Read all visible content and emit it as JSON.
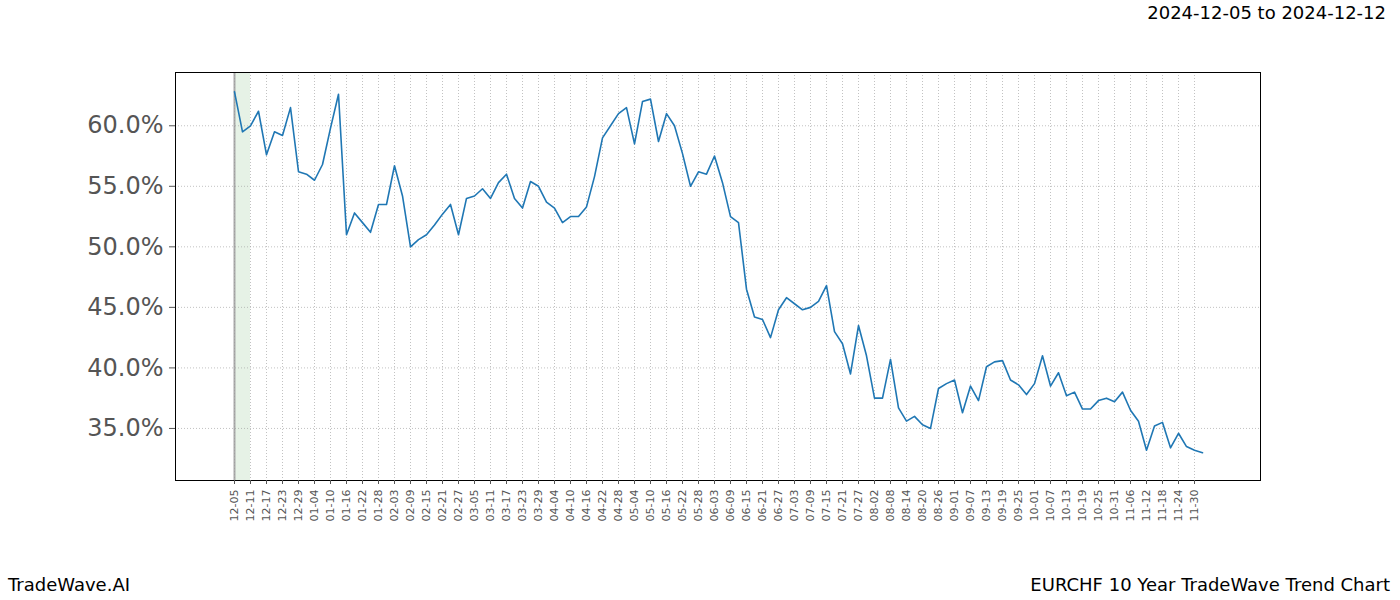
{
  "chart_data": {
    "type": "line",
    "title": "2024-12-05 to 2024-12-12",
    "caption_left": "TradeWave.AI",
    "caption_right": "EURCHF 10 Year TradeWave Trend Chart",
    "categories": [
      "12-05",
      null,
      "12-11",
      null,
      "12-17",
      null,
      "12-23",
      null,
      "12-29",
      null,
      "01-04",
      null,
      "01-10",
      null,
      "01-16",
      null,
      "01-22",
      null,
      "01-28",
      null,
      "02-03",
      null,
      "02-09",
      null,
      "02-15",
      null,
      "02-21",
      null,
      "02-27",
      null,
      "03-05",
      null,
      "03-11",
      null,
      "03-17",
      null,
      "03-23",
      null,
      "03-29",
      null,
      "04-04",
      null,
      "04-10",
      null,
      "04-16",
      null,
      "04-22",
      null,
      "04-28",
      null,
      "05-04",
      null,
      "05-10",
      null,
      "05-16",
      null,
      "05-22",
      null,
      "05-28",
      null,
      "06-03",
      null,
      "06-09",
      null,
      "06-15",
      null,
      "06-21",
      null,
      "06-27",
      null,
      "07-03",
      null,
      "07-09",
      null,
      "07-15",
      null,
      "07-21",
      null,
      "07-27",
      null,
      "08-02",
      null,
      "08-08",
      null,
      "08-14",
      null,
      "08-20",
      null,
      "08-26",
      null,
      "09-01",
      null,
      "09-07",
      null,
      "09-13",
      null,
      "09-19",
      null,
      "09-25",
      null,
      "10-01",
      null,
      "10-07",
      null,
      "10-13",
      null,
      "10-19",
      null,
      "10-25",
      null,
      "10-31",
      null,
      "11-06",
      null,
      "11-12",
      null,
      "11-18",
      null,
      "11-24",
      null,
      "11-30",
      null
    ],
    "values": [
      62.8,
      59.5,
      60.0,
      61.2,
      57.6,
      59.5,
      59.2,
      61.5,
      56.2,
      56.0,
      55.5,
      56.8,
      59.8,
      62.6,
      51.0,
      52.8,
      52.0,
      51.2,
      53.5,
      53.5,
      56.7,
      54.2,
      50.0,
      50.6,
      51.0,
      51.8,
      52.7,
      53.5,
      51.0,
      54.0,
      54.2,
      54.8,
      54.0,
      55.3,
      56.0,
      54.0,
      53.2,
      55.4,
      55.0,
      53.7,
      53.2,
      52.0,
      52.5,
      52.5,
      53.3,
      55.8,
      59.0,
      60.0,
      61.0,
      61.5,
      58.5,
      62.0,
      62.2,
      58.7,
      61.0,
      60.0,
      57.7,
      55.0,
      56.2,
      56.0,
      57.5,
      55.3,
      52.5,
      52.0,
      46.5,
      44.2,
      44.0,
      42.5,
      44.8,
      45.8,
      45.3,
      44.8,
      45.0,
      45.5,
      46.8,
      43.0,
      42.0,
      39.5,
      43.5,
      41.0,
      37.5,
      37.5,
      40.7,
      36.7,
      35.6,
      36.0,
      35.3,
      35.0,
      38.3,
      38.7,
      39.0,
      36.3,
      38.5,
      37.3,
      40.1,
      40.5,
      40.6,
      39.0,
      38.6,
      37.8,
      38.7,
      41.0,
      38.5,
      39.6,
      37.7,
      38.0,
      36.6,
      36.6,
      37.3,
      37.5,
      37.2,
      38.0,
      36.5,
      35.6,
      33.2,
      35.2,
      35.5,
      33.4,
      34.6,
      33.5,
      33.2,
      33.0
    ],
    "color": "#1f77b4",
    "highlight": [
      "12-05",
      "12-11"
    ],
    "ylim": [
      30.7,
      64.4
    ],
    "yticks": [
      {
        "value": 35,
        "label": "35.0%"
      },
      {
        "value": 40,
        "label": "40.0%"
      },
      {
        "value": 45,
        "label": "45.0%"
      },
      {
        "value": 50,
        "label": "50.0%"
      },
      {
        "value": 55,
        "label": "55.0%"
      },
      {
        "value": 60,
        "label": "60.0%"
      }
    ],
    "grid": true
  }
}
